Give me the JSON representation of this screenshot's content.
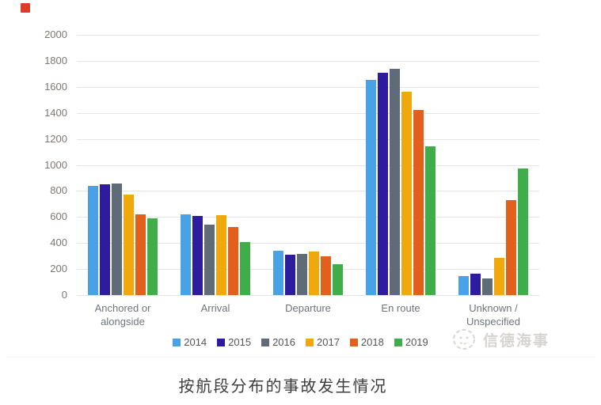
{
  "marker": {
    "color": "#E03B28"
  },
  "chart_data": {
    "type": "bar",
    "title": "按航段分布的事故发生情况",
    "xlabel": "",
    "ylabel": "",
    "ylim": [
      0,
      2000
    ],
    "ytick_step": 200,
    "grid": true,
    "legend_position": "bottom",
    "categories": [
      "Anchored or alongside",
      "Arrival",
      "Departure",
      "En route",
      "Unknown / Unspecified"
    ],
    "series": [
      {
        "name": "2014",
        "color": "#49A2E5",
        "values": [
          840,
          620,
          340,
          1655,
          145
        ]
      },
      {
        "name": "2015",
        "color": "#2E1C9E",
        "values": [
          850,
          610,
          310,
          1710,
          165
        ]
      },
      {
        "name": "2016",
        "color": "#5F6B77",
        "values": [
          855,
          540,
          315,
          1740,
          130
        ]
      },
      {
        "name": "2017",
        "color": "#F0A90C",
        "values": [
          770,
          615,
          335,
          1565,
          285
        ]
      },
      {
        "name": "2018",
        "color": "#E2601C",
        "values": [
          620,
          525,
          295,
          1420,
          730
        ]
      },
      {
        "name": "2019",
        "color": "#3FAD4A",
        "values": [
          590,
          405,
          235,
          1140,
          970
        ]
      }
    ]
  },
  "watermark": {
    "text": "信德海事"
  }
}
